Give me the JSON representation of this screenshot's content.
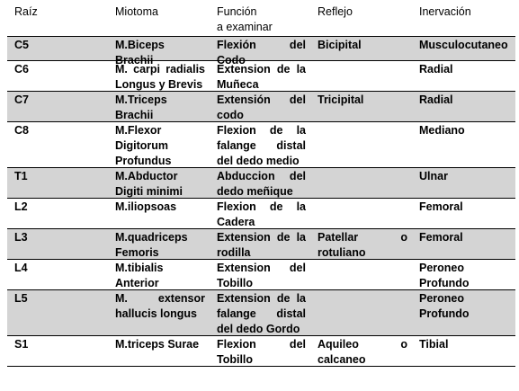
{
  "headers": [
    "Raíz",
    "Miotoma",
    "Función\na examinar",
    "Reflejo",
    "Inervación"
  ],
  "rows": [
    {
      "raiz": "C5",
      "miotoma": [
        "M.Biceps",
        "Brachii"
      ],
      "funcion": [
        "Flexión del Codo"
      ],
      "reflejo": [
        "Bicipital"
      ],
      "inervacion": "Musculocutaneo",
      "shaded": true
    },
    {
      "raiz": "C6",
      "miotoma": [
        "M. carpi radialis",
        "Longus y Brevis"
      ],
      "funcion": [
        "Extension de la",
        "Muñeca"
      ],
      "reflejo": [],
      "inervacion": "Radial",
      "shaded": false
    },
    {
      "raiz": "C7",
      "miotoma": [
        "M.Triceps",
        "Brachii"
      ],
      "funcion": [
        "Extensión del",
        "codo"
      ],
      "reflejo": [
        "Tricipital"
      ],
      "inervacion": "Radial",
      "shaded": true
    },
    {
      "raiz": "C8",
      "miotoma": [
        "M.Flexor",
        "Digitorum",
        "Profundus"
      ],
      "funcion": [
        "Flexion de la",
        "falange distal",
        "del dedo medio"
      ],
      "reflejo": [],
      "inervacion": "Mediano",
      "shaded": false
    },
    {
      "raiz": "T1",
      "miotoma": [
        "M.Abductor",
        "Digiti minimi"
      ],
      "funcion": [
        "Abduccion del",
        "dedo meñique"
      ],
      "reflejo": [],
      "inervacion": "Ulnar",
      "shaded": true
    },
    {
      "raiz": "L2",
      "miotoma": [
        "M.iliopsoas"
      ],
      "funcion": [
        "Flexion de la",
        "Cadera"
      ],
      "reflejo": [],
      "inervacion": "Femoral",
      "shaded": false
    },
    {
      "raiz": "L3",
      "miotoma": [
        "M.quadriceps",
        "Femoris"
      ],
      "funcion": [
        "Extension de la",
        "rodilla"
      ],
      "reflejo": [
        "Patellar o",
        "rotuliano"
      ],
      "inervacion": "Femoral",
      "shaded": true
    },
    {
      "raiz": "L4",
      "miotoma": [
        "M.tibialis",
        "Anterior"
      ],
      "funcion": [
        "Extension del",
        "Tobillo"
      ],
      "reflejo": [],
      "inervacion": "Peroneo\nProfundo",
      "shaded": false
    },
    {
      "raiz": "L5",
      "miotoma": [
        "M. extensor",
        "hallucis longus"
      ],
      "funcion": [
        "Extension de la",
        "falange distal",
        "del dedo Gordo"
      ],
      "reflejo": [],
      "inervacion": "Peroneo\nProfundo",
      "shaded": true
    },
    {
      "raiz": "S1",
      "miotoma": [
        "M.triceps Surae"
      ],
      "funcion": [
        "Flexion del",
        "Tobillo"
      ],
      "reflejo": [
        "Aquileo o",
        "calcaneo"
      ],
      "inervacion": "Tibial",
      "shaded": false
    }
  ]
}
